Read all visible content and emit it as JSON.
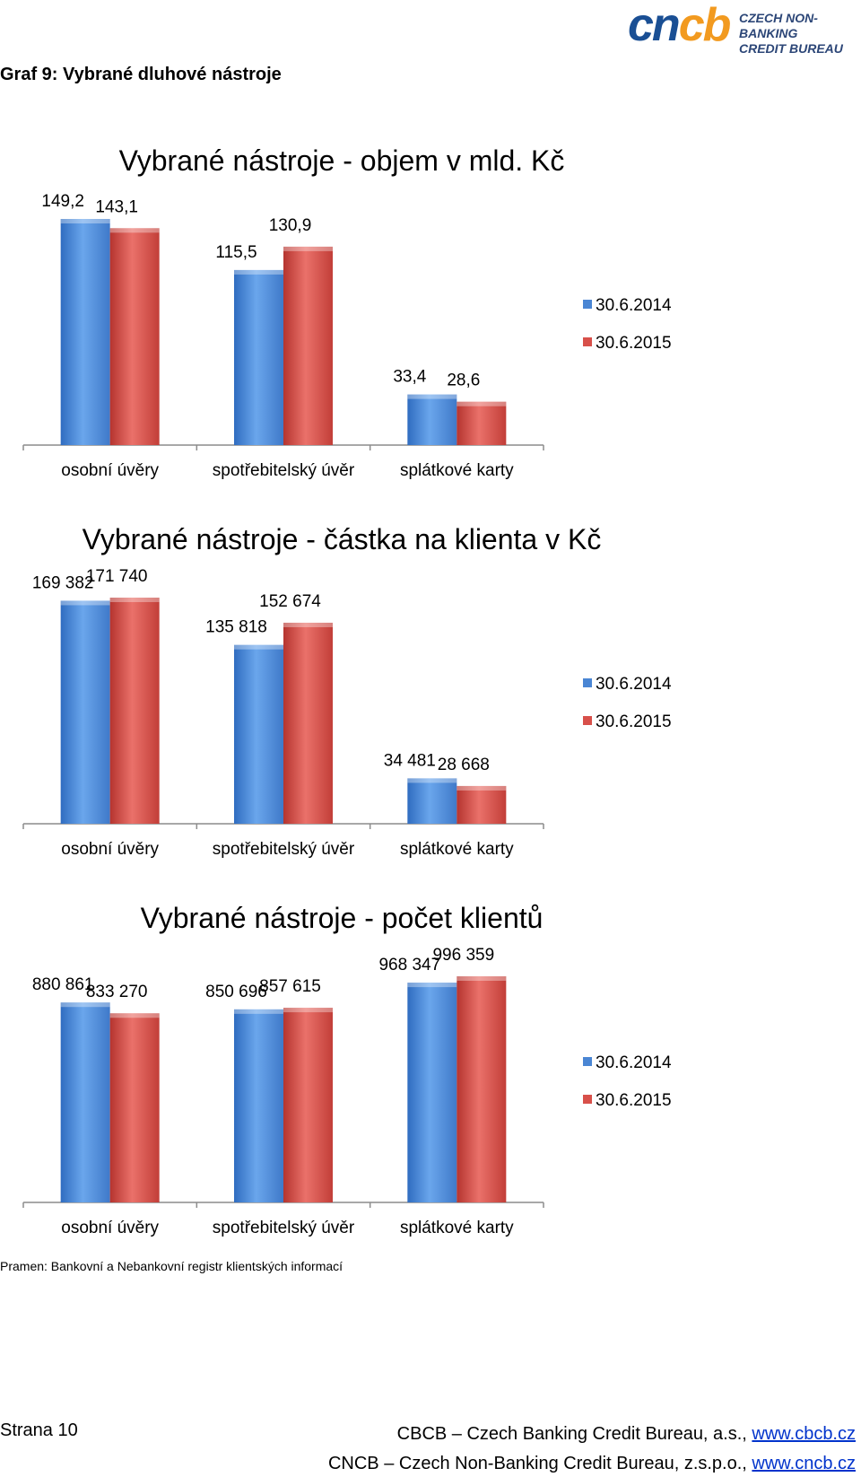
{
  "header": {
    "logo_mark": [
      "cn",
      "cb"
    ],
    "logo_text": [
      "CZECH NON-BANKING",
      "CREDIT BUREAU"
    ],
    "figure_label": "Graf 9: Vybrané dluhové nástroje"
  },
  "colors": {
    "series1": "#4a86d4",
    "series2": "#d8504a",
    "logo_blue": "#1a4f94",
    "logo_orange": "#f29a1f"
  },
  "chart_data": [
    {
      "type": "bar",
      "title": "Vybrané nástroje - objem v mld. Kč",
      "categories": [
        "osobní úvěry",
        "spotřebitelský úvěr",
        "splátkové karty"
      ],
      "series": [
        {
          "name": "30.6.2014",
          "values": [
            149.2,
            115.5,
            33.4
          ],
          "labels": [
            "149,2",
            "115,5",
            "33,4"
          ]
        },
        {
          "name": "30.6.2015",
          "values": [
            143.1,
            130.9,
            28.6
          ],
          "labels": [
            "143,1",
            "130,9",
            "28,6"
          ]
        }
      ],
      "ylim": [
        0,
        149.2
      ],
      "legend": "right",
      "grid": false
    },
    {
      "type": "bar",
      "title": "Vybrané nástroje - částka na klienta v Kč",
      "categories": [
        "osobní úvěry",
        "spotřebitelský úvěr",
        "splátkové karty"
      ],
      "series": [
        {
          "name": "30.6.2014",
          "values": [
            169382,
            135818,
            34481
          ],
          "labels": [
            "169 382",
            "135 818",
            "34 481"
          ]
        },
        {
          "name": "30.6.2015",
          "values": [
            171740,
            152674,
            28668
          ],
          "labels": [
            "171 740",
            "152 674",
            "28 668"
          ]
        }
      ],
      "ylim": [
        0,
        171740
      ],
      "legend": "right",
      "grid": false
    },
    {
      "type": "bar",
      "title": "Vybrané nástroje - počet klientů",
      "categories": [
        "osobní úvěry",
        "spotřebitelský úvěr",
        "splátkové karty"
      ],
      "series": [
        {
          "name": "30.6.2014",
          "values": [
            880861,
            850696,
            968347
          ],
          "labels": [
            "880 861",
            "850 696",
            "968 347"
          ]
        },
        {
          "name": "30.6.2015",
          "values": [
            833270,
            857615,
            996359
          ],
          "labels": [
            "833 270",
            "857 615",
            "996 359"
          ]
        }
      ],
      "ylim": [
        0,
        996359
      ],
      "legend": "right",
      "grid": false
    }
  ],
  "source": "Pramen: Bankovní a Nebankovní registr klientských informací",
  "footer": {
    "page": "Strana 10",
    "line1_text": "CBCB – Czech Banking Credit Bureau, a.s., ",
    "line1_link": "www.cbcb.cz",
    "line2_text": "CNCB – Czech Non-Banking Credit Bureau, z.s.p.o., ",
    "line2_link": "www.cncb.cz"
  }
}
